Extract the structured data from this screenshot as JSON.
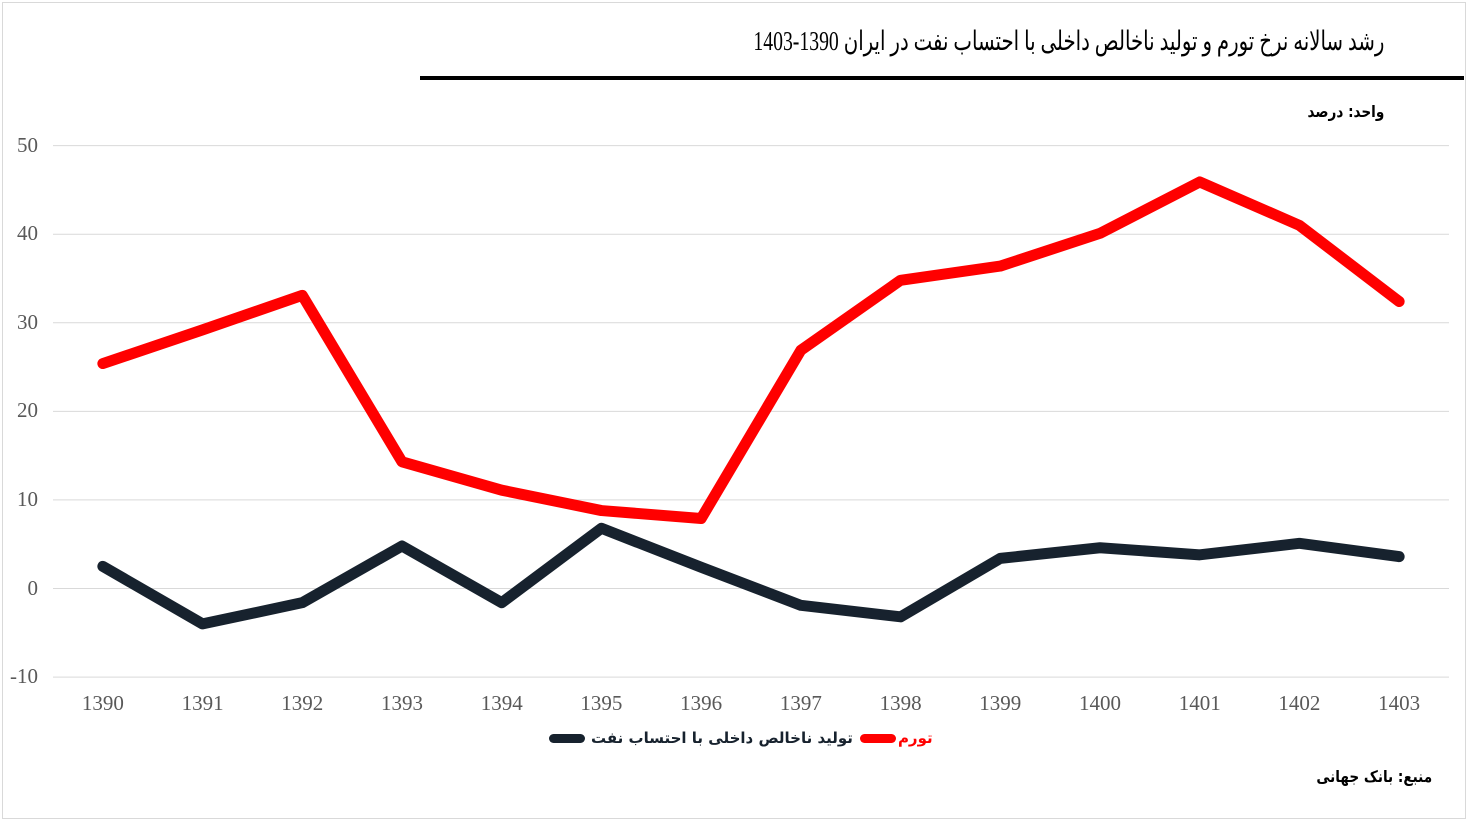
{
  "title": "رشد سالانه نرخ تورم و تولید ناخالص داخلی با احتساب نفت در ایران 1390-1403",
  "unit_label": "واحد: درصد",
  "source_label": "منبع: بانک جهانی",
  "colors": {
    "inflation": "#ff0000",
    "gdp": "#17222e",
    "axis_text": "#595959",
    "gridline": "#d9d9d9"
  },
  "chart_data": {
    "type": "line",
    "categories": [
      "1390",
      "1391",
      "1392",
      "1393",
      "1394",
      "1395",
      "1396",
      "1397",
      "1398",
      "1399",
      "1400",
      "1401",
      "1402",
      "1403"
    ],
    "series": [
      {
        "name": "تولید ناخالص داخلی با احتساب نفت",
        "color_key": "gdp",
        "values": [
          2.5,
          -4.0,
          -1.6,
          4.8,
          -1.6,
          6.8,
          2.4,
          -1.9,
          -3.2,
          3.4,
          4.6,
          3.8,
          5.1,
          3.6
        ]
      },
      {
        "name": "تورم",
        "color_key": "inflation",
        "values": [
          25.4,
          29.2,
          33.1,
          14.3,
          11.1,
          8.8,
          7.9,
          26.9,
          34.8,
          36.4,
          40.1,
          45.9,
          41.0,
          32.4
        ]
      }
    ],
    "ylim": [
      -10,
      50
    ],
    "yticks": [
      -10,
      0,
      10,
      20,
      30,
      40,
      50
    ],
    "grid": true,
    "legend_position": "bottom"
  }
}
